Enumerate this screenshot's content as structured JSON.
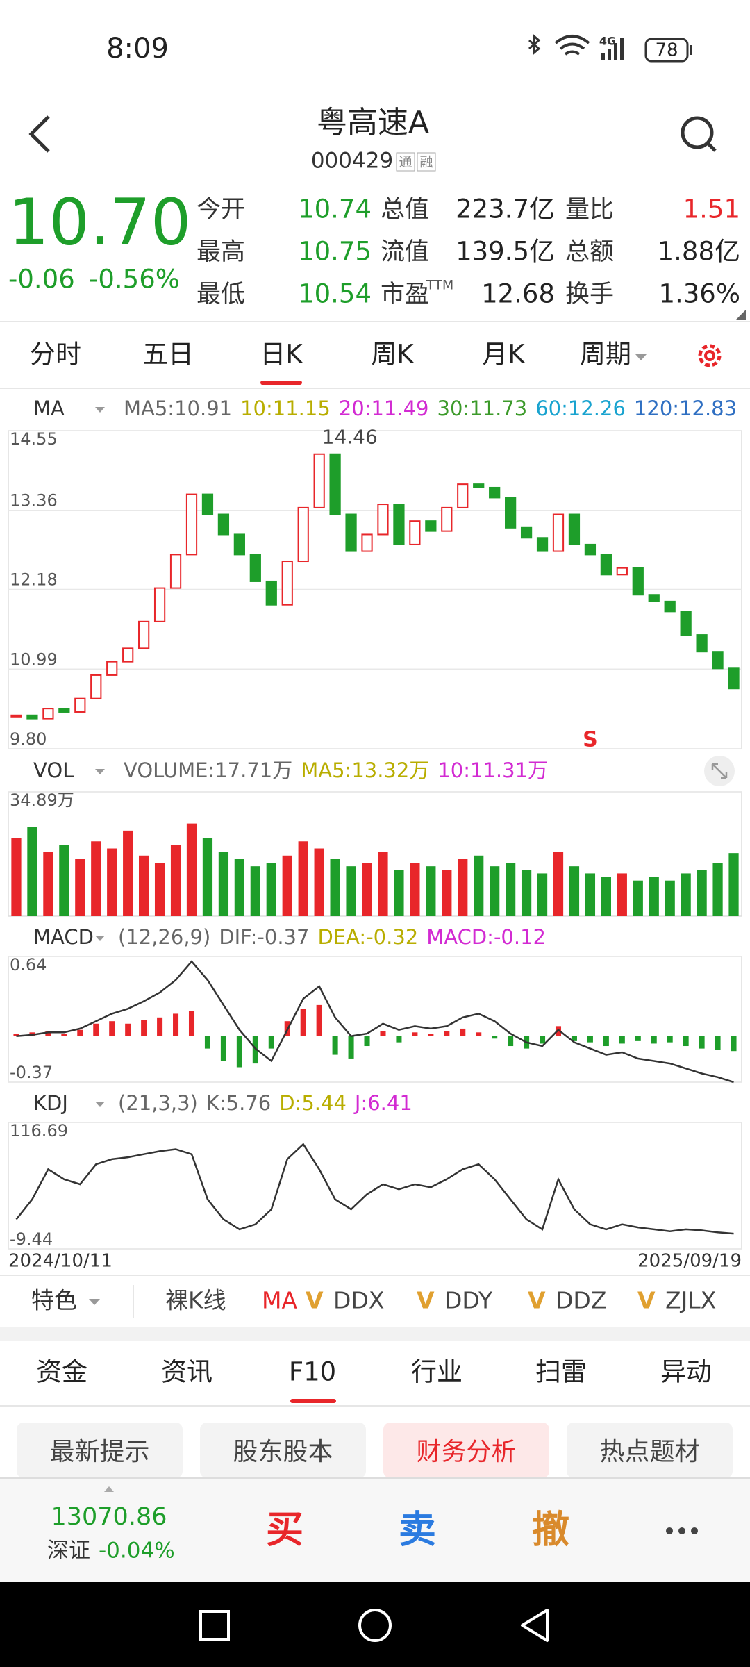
{
  "status_bar": {
    "time": "8:09",
    "network": "4G",
    "battery": "78"
  },
  "header": {
    "title": "粤高速A",
    "code": "000429",
    "badges": [
      "通",
      "融"
    ]
  },
  "quote": {
    "price": "10.70",
    "change": "-0.06",
    "change_pct": "-0.56%",
    "fields": [
      {
        "label": "今开",
        "value": "10.74"
      },
      {
        "label": "总值",
        "value": "223.7亿"
      },
      {
        "label": "量比",
        "value": "1.51"
      },
      {
        "label": "最高",
        "value": "10.75"
      },
      {
        "label": "流值",
        "value": "139.5亿"
      },
      {
        "label": "总额",
        "value": "1.88亿"
      },
      {
        "label": "最低",
        "value": "10.54"
      },
      {
        "label": "市盈",
        "sup": "TTM",
        "value": "12.68"
      },
      {
        "label": "换手",
        "value": "1.36%"
      }
    ]
  },
  "period_tabs": [
    "分时",
    "五日",
    "日K",
    "周K",
    "月K",
    "周期"
  ],
  "ma_legend": {
    "name": "MA",
    "items": [
      {
        "text": "MA5:10.91",
        "color": "#666666"
      },
      {
        "text": "10:11.15",
        "color": "#b8ad00"
      },
      {
        "text": "20:11.49",
        "color": "#d22ad2"
      },
      {
        "text": "30:11.73",
        "color": "#3c9a2a"
      },
      {
        "text": "60:12.26",
        "color": "#19a3cf"
      },
      {
        "text": "120:12.83",
        "color": "#2f6fc2"
      }
    ]
  },
  "k_chart": {
    "type": "candlestick",
    "ylim": [
      9.8,
      14.55
    ],
    "yticks": [
      14.55,
      13.36,
      12.18,
      10.99,
      {
        "value": 9.8,
        "label": "9.80"
      }
    ],
    "up_color": "#e8262a",
    "down_color": "#1e9e2a",
    "values": [
      10.3,
      10.25,
      10.4,
      10.35,
      10.55,
      10.9,
      11.1,
      11.3,
      11.7,
      12.2,
      12.7,
      13.6,
      13.3,
      13.0,
      12.7,
      12.3,
      11.95,
      12.6,
      13.4,
      14.2,
      13.3,
      12.75,
      13.0,
      13.45,
      12.85,
      13.2,
      13.05,
      13.4,
      13.75,
      13.7,
      13.55,
      13.1,
      12.95,
      12.75,
      13.3,
      12.85,
      12.7,
      12.4,
      12.5,
      12.1,
      12.0,
      11.85,
      11.5,
      11.25,
      11.0,
      10.7
    ],
    "annotations": [
      {
        "text": "14.46",
        "index": 19,
        "value": 14.46
      },
      {
        "text": "S",
        "index": 36,
        "color": "#e8262a"
      }
    ],
    "x_labels": [
      "2024/10/11",
      "2025/09/19"
    ]
  },
  "vol_legend": {
    "name": "VOL",
    "items": [
      {
        "text": "VOLUME:17.71万",
        "color": "#666666"
      },
      {
        "text": "MA5:13.32万",
        "color": "#b8ad00"
      },
      {
        "text": "10:11.31万",
        "color": "#d22ad2"
      }
    ]
  },
  "vol_chart": {
    "type": "bar",
    "ylim": [
      0,
      34.89
    ],
    "yticks": [
      {
        "value": 34.89,
        "label": "34.89万"
      }
    ],
    "values": [
      22,
      25,
      18,
      20,
      16,
      21,
      19,
      24,
      17,
      15,
      20,
      26,
      22,
      18,
      16,
      14,
      15,
      17,
      21,
      19,
      16,
      14,
      15,
      18,
      13,
      15,
      14,
      13,
      16,
      17,
      14,
      15,
      13,
      12,
      18,
      14,
      12,
      11,
      12,
      10,
      11,
      10,
      12,
      13,
      15,
      17.71
    ]
  },
  "macd_legend": {
    "name": "MACD",
    "items": [
      {
        "text": "(12,26,9)",
        "color": "#666666"
      },
      {
        "text": "DIF:-0.37",
        "color": "#666666"
      },
      {
        "text": "DEA:-0.32",
        "color": "#b8ad00"
      },
      {
        "text": "MACD:-0.12",
        "color": "#d22ad2"
      }
    ]
  },
  "macd_chart": {
    "type": "bar",
    "ylim": [
      -0.37,
      0.64
    ],
    "yticks": [
      0.64,
      -0.37
    ],
    "values": [
      0.02,
      0.03,
      0.04,
      0.02,
      0.05,
      0.1,
      0.12,
      0.1,
      0.13,
      0.15,
      0.18,
      0.2,
      -0.1,
      -0.2,
      -0.25,
      -0.22,
      -0.1,
      0.12,
      0.22,
      0.25,
      -0.15,
      -0.18,
      -0.08,
      0.04,
      -0.05,
      0.03,
      0.02,
      0.04,
      0.06,
      0.03,
      -0.02,
      -0.08,
      -0.1,
      -0.06,
      0.08,
      -0.04,
      -0.05,
      -0.08,
      -0.06,
      -0.04,
      -0.06,
      -0.05,
      -0.08,
      -0.1,
      -0.11,
      -0.12
    ],
    "dif": [
      0.0,
      0.01,
      0.03,
      0.03,
      0.06,
      0.12,
      0.18,
      0.22,
      0.28,
      0.35,
      0.45,
      0.6,
      0.45,
      0.25,
      0.05,
      -0.1,
      -0.2,
      0.05,
      0.3,
      0.4,
      0.15,
      0.0,
      0.02,
      0.1,
      0.05,
      0.08,
      0.06,
      0.08,
      0.15,
      0.18,
      0.12,
      0.02,
      -0.05,
      -0.08,
      0.05,
      -0.05,
      -0.1,
      -0.15,
      -0.13,
      -0.18,
      -0.2,
      -0.22,
      -0.26,
      -0.3,
      -0.33,
      -0.37
    ]
  },
  "kdj_legend": {
    "name": "KDJ",
    "items": [
      {
        "text": "(21,3,3)",
        "color": "#666666"
      },
      {
        "text": "K:5.76",
        "color": "#666666"
      },
      {
        "text": "D:5.44",
        "color": "#b8ad00"
      },
      {
        "text": "J:6.41",
        "color": "#d22ad2"
      }
    ]
  },
  "kdj_chart": {
    "type": "line",
    "ylim": [
      -9.44,
      116.69
    ],
    "yticks": [
      116.69,
      -9.44
    ],
    "color": "#333333",
    "values": [
      20,
      40,
      70,
      60,
      55,
      75,
      80,
      82,
      85,
      88,
      90,
      85,
      40,
      20,
      10,
      15,
      30,
      80,
      95,
      70,
      40,
      30,
      45,
      55,
      50,
      55,
      52,
      60,
      70,
      75,
      60,
      40,
      20,
      10,
      60,
      30,
      15,
      10,
      15,
      12,
      10,
      8,
      10,
      9,
      7,
      5.76
    ]
  },
  "indicator_bar": {
    "menu": "特色",
    "items": [
      "裸K线",
      "MA",
      "DDX",
      "DDY",
      "DDZ",
      "ZJLX"
    ],
    "marker": "V"
  },
  "info_tabs": [
    "资金",
    "资讯",
    "F10",
    "行业",
    "扫雷",
    "异动"
  ],
  "chips": [
    "最新提示",
    "股东股本",
    "财务分析",
    "热点题材"
  ],
  "trade_bar": {
    "index_value": "13070.86",
    "index_name": "深证",
    "index_change": "-0.04%",
    "buttons": [
      "买",
      "卖",
      "撤"
    ]
  }
}
